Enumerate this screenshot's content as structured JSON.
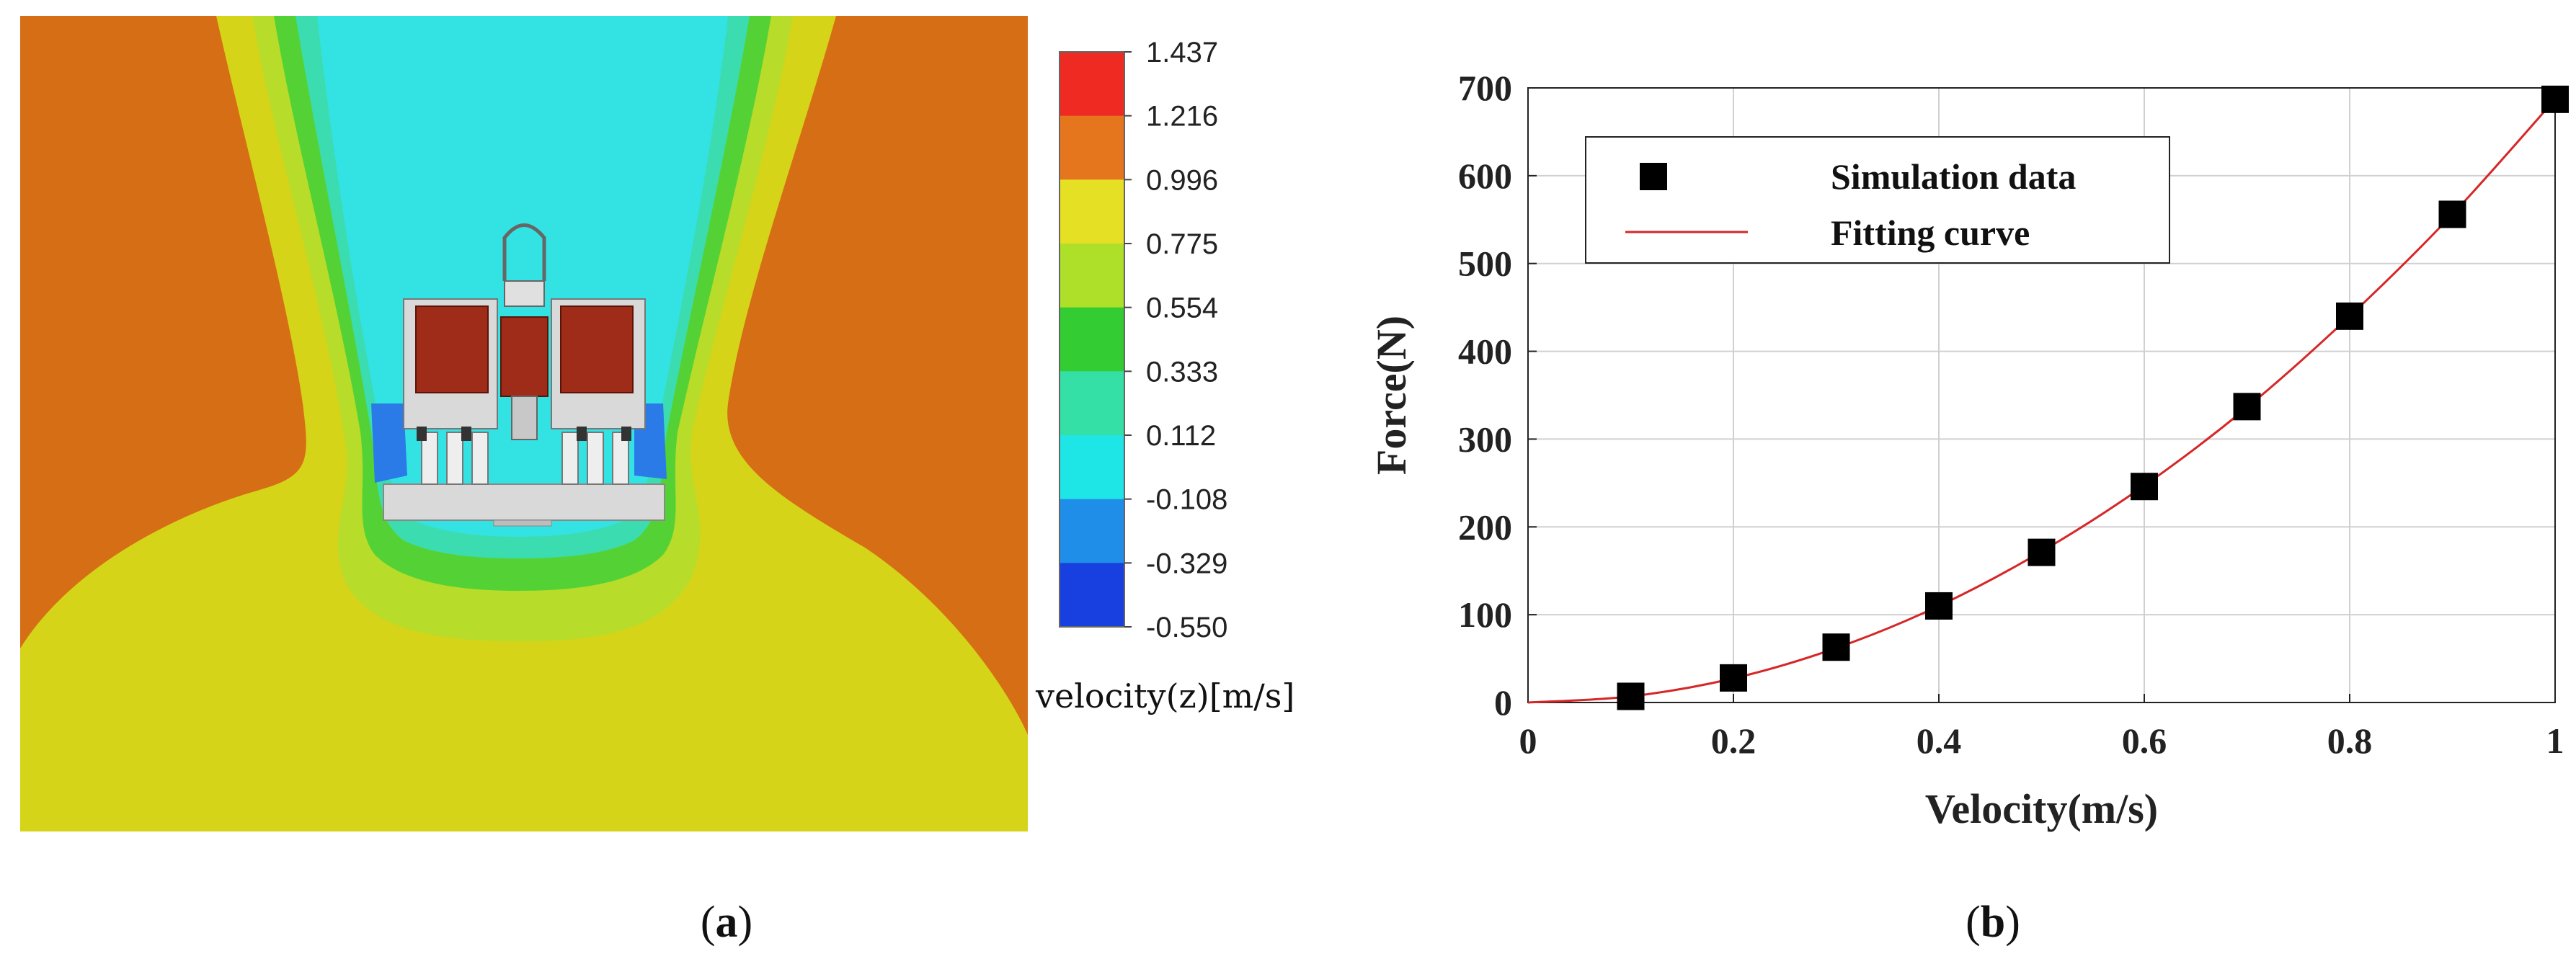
{
  "panel_a": {
    "caption_open": "(",
    "caption_letter": "a",
    "caption_close": ")",
    "colorbar_label": "velocity(z)[m/s]",
    "colorbar_ticks": [
      "1.437",
      "1.216",
      "0.996",
      "0.775",
      "0.554",
      "0.333",
      "0.112",
      "-0.108",
      "-0.329",
      "-0.550"
    ],
    "colorbar_colors": [
      "#ee2a22",
      "#e5761d",
      "#e6e024",
      "#aee02a",
      "#33cc33",
      "#35e0a6",
      "#1fe6e6",
      "#1f8ee8",
      "#1840e0"
    ],
    "field_colors": {
      "outer": "#d66e16",
      "yellow": "#d6d418",
      "light_green": "#b7dc2a",
      "green": "#54d235",
      "teal": "#3bddb0",
      "cyan": "#33e2e2",
      "blue": "#2a7be8",
      "device_red": "#9f2c18",
      "device_light": "#d9d9d9"
    }
  },
  "panel_b": {
    "caption_open": "(",
    "caption_letter": "b",
    "caption_close": ")",
    "chart_data": {
      "type": "scatter",
      "xlabel": "Velocity(m/s)",
      "ylabel": "Force(N)",
      "xlim": [
        0,
        1
      ],
      "ylim": [
        0,
        700
      ],
      "xticks": [
        0,
        0.2,
        0.4,
        0.6,
        0.8,
        1
      ],
      "xtick_labels": [
        "0",
        "0.2",
        "0.4",
        "0.6",
        "0.8",
        "1"
      ],
      "yticks": [
        0,
        100,
        200,
        300,
        400,
        500,
        600,
        700
      ],
      "ytick_labels": [
        "0",
        "100",
        "200",
        "300",
        "400",
        "500",
        "600",
        "700"
      ],
      "grid": true,
      "legend_position": "top-left",
      "series": [
        {
          "name": "Simulation data",
          "kind": "marker",
          "marker": "square",
          "color": "#000000",
          "x": [
            0.1,
            0.2,
            0.3,
            0.4,
            0.5,
            0.6,
            0.7,
            0.8,
            0.9,
            1.0
          ],
          "y": [
            7,
            28,
            63,
            110,
            171,
            246,
            337,
            440,
            556,
            687
          ]
        },
        {
          "name": "Fitting curve",
          "kind": "line",
          "color": "#d62728",
          "x": [
            0,
            0.1,
            0.2,
            0.3,
            0.4,
            0.5,
            0.6,
            0.7,
            0.8,
            0.9,
            1.0
          ],
          "y": [
            0,
            7,
            27.5,
            62,
            110,
            172,
            247,
            336,
            440,
            556,
            687
          ]
        }
      ]
    }
  }
}
